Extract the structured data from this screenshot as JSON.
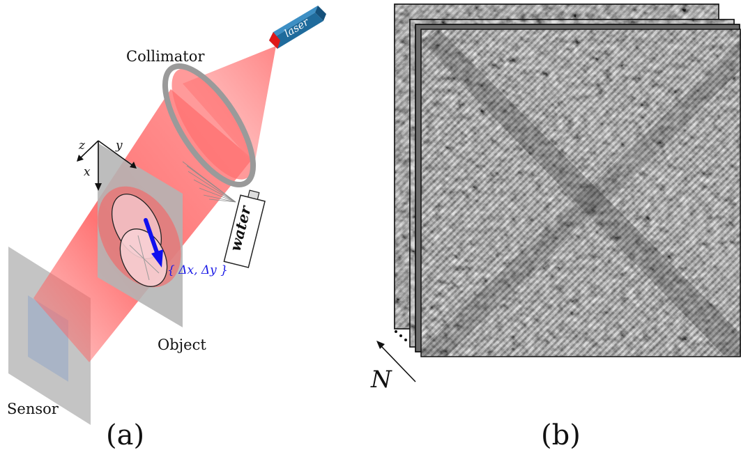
{
  "panel_a": {
    "caption": "(a)",
    "labels": {
      "collimator": "Collimator",
      "object": "Object",
      "sensor": "Sensor",
      "laser": "laser",
      "water": "water"
    },
    "axes": {
      "z": "z",
      "y": "y",
      "x": "x"
    },
    "displacement_label": "{ Δx, Δy }",
    "colors": {
      "beam": "#ff6b6b",
      "beam_light": "#ffb3b3",
      "laser_body": "#1f6b9c",
      "laser_tip": "#e01818",
      "panel_gray": "#c4c4c4",
      "sensor_inner": "#a9b4c6",
      "arrow_blue": "#1010ee"
    }
  },
  "panel_b": {
    "caption": "(b)",
    "stack_label": "N",
    "content": "stack of speckle-pattern image frames"
  }
}
